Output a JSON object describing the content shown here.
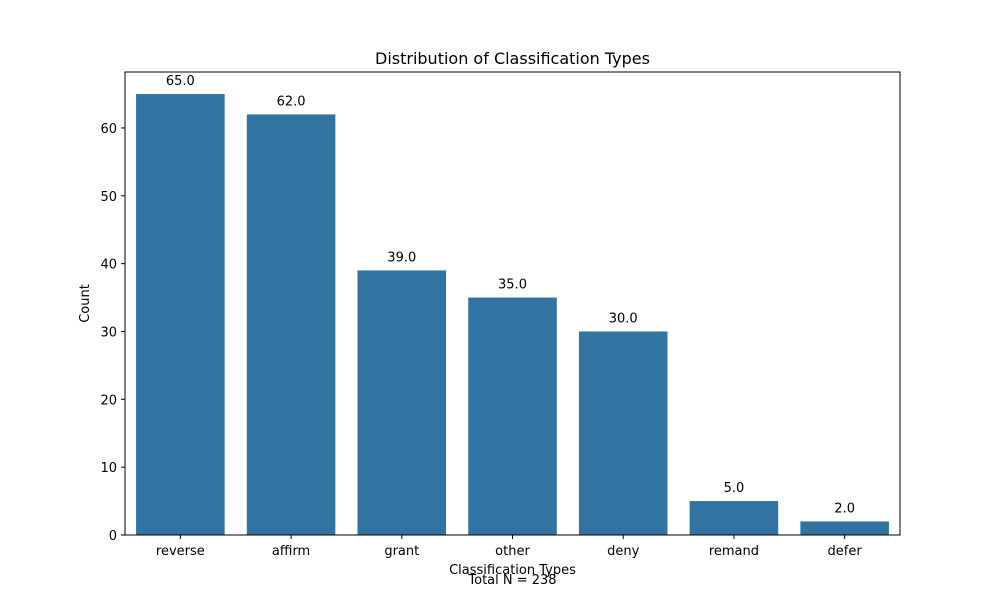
{
  "chart_data": {
    "type": "bar",
    "title": "Distribution of Classification Types",
    "xlabel": "Classification Types",
    "ylabel": "Count",
    "categories": [
      "reverse",
      "affirm",
      "grant",
      "other",
      "deny",
      "remand",
      "defer"
    ],
    "values": [
      65,
      62,
      39,
      35,
      30,
      5,
      2
    ],
    "data_labels": [
      "65.0",
      "62.0",
      "39.0",
      "35.0",
      "30.0",
      "5.0",
      "2.0"
    ],
    "ylim": [
      0,
      68.25
    ],
    "yticks": [
      0,
      10,
      20,
      30,
      40,
      50,
      60
    ],
    "bar_color": "#3274a1",
    "grid": false,
    "legend": "none",
    "footnote": "Total N = 238"
  }
}
